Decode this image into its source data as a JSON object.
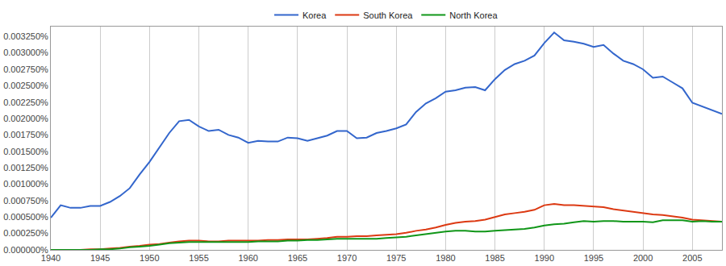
{
  "chart_data": {
    "type": "line",
    "x": [
      1940,
      1941,
      1942,
      1943,
      1944,
      1945,
      1946,
      1947,
      1948,
      1949,
      1950,
      1951,
      1952,
      1953,
      1954,
      1955,
      1956,
      1957,
      1958,
      1959,
      1960,
      1961,
      1962,
      1963,
      1964,
      1965,
      1966,
      1967,
      1968,
      1969,
      1970,
      1971,
      1972,
      1973,
      1974,
      1975,
      1976,
      1977,
      1978,
      1979,
      1980,
      1981,
      1982,
      1983,
      1984,
      1985,
      1986,
      1987,
      1988,
      1989,
      1990,
      1991,
      1992,
      1993,
      1994,
      1995,
      1996,
      1997,
      1998,
      1999,
      2000,
      2001,
      2002,
      2003,
      2004,
      2005,
      2006,
      2007,
      2008
    ],
    "series": [
      {
        "name": "Korea",
        "color": "#3366cc",
        "values": [
          0.00049,
          0.00068,
          0.00064,
          0.00064,
          0.00067,
          0.00067,
          0.00073,
          0.00082,
          0.00094,
          0.00115,
          0.00134,
          0.00156,
          0.00178,
          0.00196,
          0.00198,
          0.00188,
          0.00181,
          0.00183,
          0.00175,
          0.00171,
          0.00163,
          0.00166,
          0.00165,
          0.00165,
          0.00171,
          0.0017,
          0.00166,
          0.0017,
          0.00174,
          0.00181,
          0.00181,
          0.0017,
          0.00171,
          0.00178,
          0.00181,
          0.00185,
          0.00191,
          0.0021,
          0.00223,
          0.00231,
          0.00241,
          0.00243,
          0.00247,
          0.00248,
          0.00243,
          0.0026,
          0.00274,
          0.00283,
          0.00288,
          0.00296,
          0.00315,
          0.00331,
          0.00319,
          0.00317,
          0.00314,
          0.00309,
          0.00312,
          0.00299,
          0.00288,
          0.00283,
          0.00275,
          0.00262,
          0.00264,
          0.00255,
          0.00246,
          0.00224,
          0.00218,
          0.00212,
          0.00207
        ]
      },
      {
        "name": "South Korea",
        "color": "#dc3912",
        "values": [
          0,
          0,
          0,
          0,
          1e-05,
          1e-05,
          2e-05,
          3e-05,
          5e-05,
          6e-05,
          8e-05,
          9e-05,
          0.00011,
          0.00013,
          0.00014,
          0.00014,
          0.00013,
          0.00013,
          0.00014,
          0.00014,
          0.00014,
          0.00014,
          0.00015,
          0.00015,
          0.00016,
          0.00016,
          0.00016,
          0.00017,
          0.00018,
          0.0002,
          0.0002,
          0.00021,
          0.00021,
          0.00022,
          0.00023,
          0.00024,
          0.00026,
          0.00029,
          0.00031,
          0.00034,
          0.00038,
          0.00041,
          0.00043,
          0.00044,
          0.00046,
          0.0005,
          0.00054,
          0.00056,
          0.00058,
          0.00061,
          0.00068,
          0.0007,
          0.00068,
          0.00068,
          0.00067,
          0.00066,
          0.00065,
          0.00062,
          0.0006,
          0.00058,
          0.00056,
          0.00054,
          0.00053,
          0.00051,
          0.00049,
          0.00046,
          0.00045,
          0.00044,
          0.00043
        ]
      },
      {
        "name": "North Korea",
        "color": "#109618",
        "values": [
          0,
          0,
          0,
          0,
          0,
          1e-05,
          1e-05,
          2e-05,
          4e-05,
          5e-05,
          6e-05,
          8e-05,
          0.0001,
          0.00011,
          0.00012,
          0.00012,
          0.00012,
          0.00012,
          0.00012,
          0.00012,
          0.00012,
          0.00013,
          0.00013,
          0.00013,
          0.00014,
          0.00014,
          0.00015,
          0.00015,
          0.00016,
          0.00017,
          0.00017,
          0.00017,
          0.00017,
          0.00017,
          0.00018,
          0.00019,
          0.0002,
          0.00022,
          0.00024,
          0.00026,
          0.00028,
          0.00029,
          0.00029,
          0.00028,
          0.00028,
          0.00029,
          0.0003,
          0.00031,
          0.00032,
          0.00034,
          0.00037,
          0.00039,
          0.0004,
          0.00042,
          0.00044,
          0.00043,
          0.00044,
          0.00044,
          0.00043,
          0.00043,
          0.00043,
          0.00042,
          0.00045,
          0.00045,
          0.00045,
          0.00043,
          0.00044,
          0.00043,
          0.00043
        ]
      }
    ],
    "xlim": [
      1940,
      2008
    ],
    "xticks": [
      1940,
      1945,
      1950,
      1955,
      1960,
      1965,
      1970,
      1975,
      1980,
      1985,
      1990,
      1995,
      2000,
      2005
    ],
    "ylim": [
      0,
      0.0034
    ],
    "yticks": [
      {
        "value": 0,
        "label": "0.000000%"
      },
      {
        "value": 0.00025,
        "label": "0.000250%"
      },
      {
        "value": 0.0005,
        "label": "0.000500%"
      },
      {
        "value": 0.00075,
        "label": "0.000750%"
      },
      {
        "value": 0.001,
        "label": "0.001000%"
      },
      {
        "value": 0.00125,
        "label": "0.001250%"
      },
      {
        "value": 0.0015,
        "label": "0.001500%"
      },
      {
        "value": 0.00175,
        "label": "0.001750%"
      },
      {
        "value": 0.002,
        "label": "0.002000%"
      },
      {
        "value": 0.00225,
        "label": "0.002250%"
      },
      {
        "value": 0.0025,
        "label": "0.002500%"
      },
      {
        "value": 0.00275,
        "label": "0.002750%"
      },
      {
        "value": 0.003,
        "label": "0.003000%"
      },
      {
        "value": 0.00325,
        "label": "0.003250%"
      }
    ],
    "grid": true,
    "legend": "top"
  }
}
